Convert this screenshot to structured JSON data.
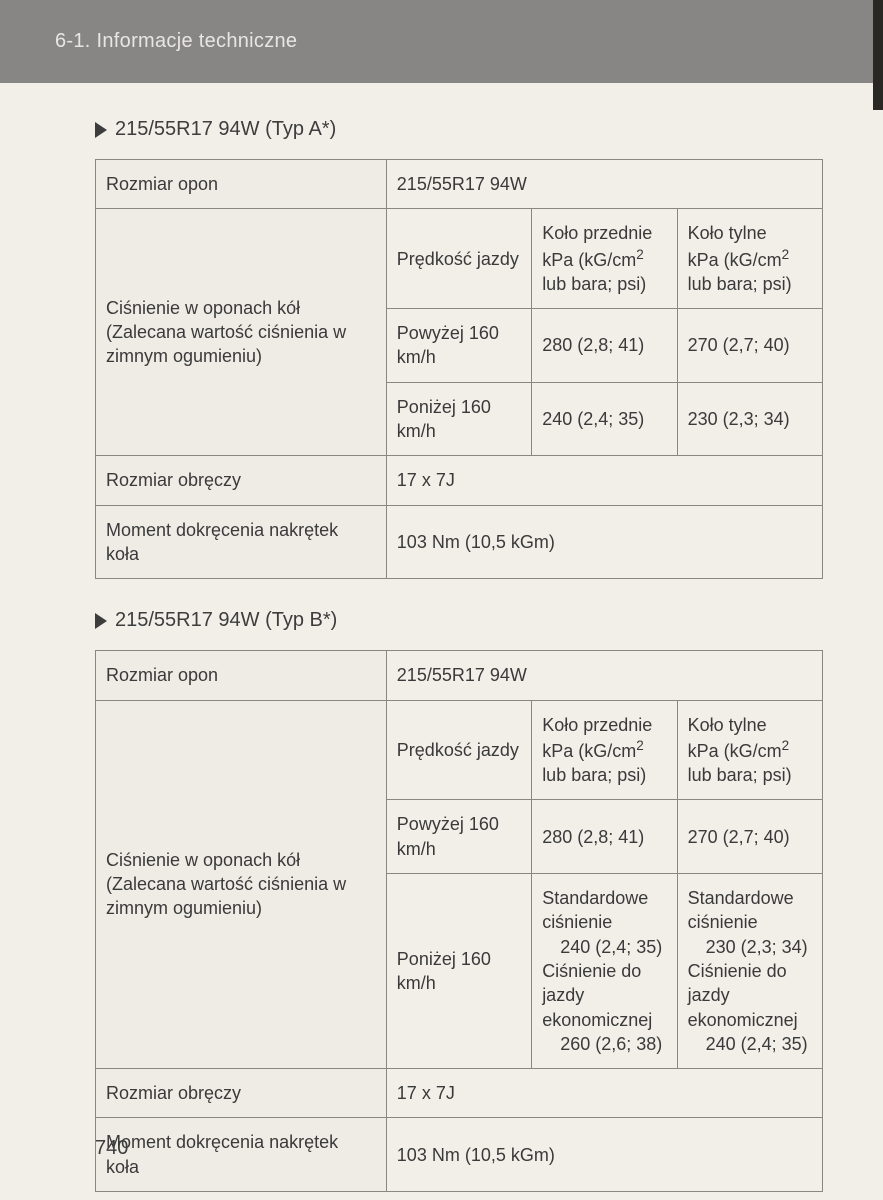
{
  "header": {
    "text": "6-1. Informacje techniczne"
  },
  "page_number": "740",
  "colors": {
    "page_bg": "#f2efe9",
    "header_bg": "#888684",
    "header_fg": "#e8e6e2",
    "border": "#8a8681",
    "text": "#3a3a3a"
  },
  "sections": [
    {
      "title": "215/55R17 94W (Typ A*)",
      "table": {
        "tire_size_label": "Rozmiar opon",
        "tire_size_value": "215/55R17 94W",
        "pressure_label": "Ciśnienie w oponach kół (Zalecana wartość ciśnienia w zimnym ogumieniu)",
        "speed_header": "Prędkość jazdy",
        "front_header_line1": "Koło przednie",
        "front_header_line2": "kPa (kG/cm",
        "front_header_line3": "lub bara; psi)",
        "rear_header_line1": "Koło tylne",
        "rear_header_line2": "kPa (kG/cm",
        "rear_header_line3": "lub bara; psi)",
        "rows": [
          {
            "speed": "Powyżej 160 km/h",
            "front": "280 (2,8; 41)",
            "rear": "270 (2,7; 40)"
          },
          {
            "speed": "Poniżej 160 km/h",
            "front": "240 (2,4; 35)",
            "rear": "230 (2,3; 34)"
          }
        ],
        "rim_label": "Rozmiar obręczy",
        "rim_value": "17 x 7J",
        "torque_label": "Moment dokręcenia nakrętek koła",
        "torque_value": "103 Nm (10,5 kGm)"
      }
    },
    {
      "title": "215/55R17 94W (Typ B*)",
      "table": {
        "tire_size_label": "Rozmiar opon",
        "tire_size_value": "215/55R17 94W",
        "pressure_label": "Ciśnienie w oponach kół (Zalecana wartość ciśnienia w zimnym ogumieniu)",
        "speed_header": "Prędkość jazdy",
        "front_header_line1": "Koło przednie",
        "front_header_line2": "kPa (kG/cm",
        "front_header_line3": "lub bara; psi)",
        "rear_header_line1": "Koło tylne",
        "rear_header_line2": "kPa (kG/cm",
        "rear_header_line3": "lub bara; psi)",
        "rows": [
          {
            "speed": "Powyżej 160 km/h",
            "front": "280 (2,8; 41)",
            "rear": "270 (2,7; 40)"
          }
        ],
        "complex_row": {
          "speed": "Poniżej 160 km/h",
          "front_std_label": "Standardowe ciśnienie",
          "front_std_value": "240 (2,4; 35)",
          "front_eco_label": "Ciśnienie do jazdy ekonomicznej",
          "front_eco_value": "260 (2,6; 38)",
          "rear_std_label": "Standardowe ciśnienie",
          "rear_std_value": "230 (2,3; 34)",
          "rear_eco_label": "Ciśnienie do jazdy ekonomicznej",
          "rear_eco_value": "240 (2,4; 35)"
        },
        "rim_label": "Rozmiar obręczy",
        "rim_value": "17 x 7J",
        "torque_label": "Moment dokręcenia nakrętek koła",
        "torque_value": "103 Nm (10,5 kGm)"
      }
    }
  ]
}
